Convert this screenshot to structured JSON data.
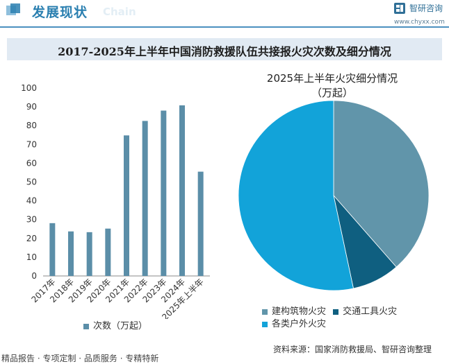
{
  "header": {
    "title": "发展现状",
    "subtitle": "Chain",
    "brand_name": "智研咨询",
    "brand_url": "www.chyxx.com"
  },
  "main_title": "2017-2025年上半年中国消防救援队伍共接报火灾次数及细分情况",
  "colors": {
    "bar": "#5b8ea8",
    "slice_building": "#6195aa",
    "slice_vehicle": "#0f5f80",
    "slice_outdoor": "#12a3d9",
    "header_accent": "#2a7fb0"
  },
  "chart_data": [
    {
      "type": "bar",
      "categories": [
        "2017年",
        "2018年",
        "2019年",
        "2020年",
        "2021年",
        "2022年",
        "2023年",
        "2024年",
        "2025年上半年"
      ],
      "series": [
        {
          "name": "次数（万起）",
          "values": [
            28.1,
            23.7,
            23.3,
            25.2,
            74.8,
            82.5,
            88.0,
            90.8,
            55.5
          ]
        }
      ],
      "ylim": [
        0,
        100
      ],
      "yticks": [
        "0",
        "10",
        "20",
        "30",
        "40",
        "50",
        "60",
        "70",
        "80",
        "90",
        "100"
      ],
      "title": "",
      "xlabel": "",
      "ylabel": "",
      "legend": "bottom"
    },
    {
      "type": "pie",
      "title": "2025年上半年火灾细分情况",
      "unit": "（万起）",
      "labels": [
        "建构筑物火灾",
        "交通工具火灾",
        "各类户外火灾"
      ],
      "values": [
        21.4,
        4.5,
        29.6
      ],
      "legend": "bottom"
    }
  ],
  "footer": {
    "tags": "精品报告 · 专项定制 · 品质服务 · 专精特新",
    "source": "资料来源：国家消防救援局、智研咨询整理"
  }
}
